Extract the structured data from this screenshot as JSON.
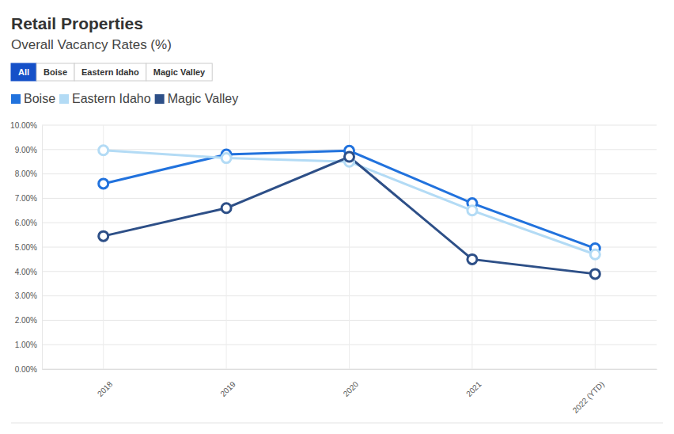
{
  "chart_data": {
    "type": "line",
    "title": "Retail Properties",
    "subtitle": "Overall Vacancy Rates (%)",
    "buttons": [
      "All",
      "Boise",
      "Eastern Idaho",
      "Magic Valley"
    ],
    "categories": [
      "2018",
      "2019",
      "2020",
      "2021",
      "2022 (YTD)"
    ],
    "series": [
      {
        "name": "Boise",
        "color": "#2172dd",
        "values": [
          7.6,
          8.8,
          8.95,
          6.8,
          4.95
        ]
      },
      {
        "name": "Eastern Idaho",
        "color": "#b3dbf5",
        "values": [
          8.97,
          8.65,
          8.5,
          6.5,
          4.7
        ]
      },
      {
        "name": "Magic Valley",
        "color": "#2d4f87",
        "values": [
          5.45,
          6.6,
          8.7,
          4.5,
          3.9
        ]
      }
    ],
    "ylim": [
      0,
      10
    ],
    "yticks": [
      {
        "value": 0,
        "label": "0.00%"
      },
      {
        "value": 1,
        "label": "1.00%"
      },
      {
        "value": 2,
        "label": "2.00%"
      },
      {
        "value": 3,
        "label": "3.00%"
      },
      {
        "value": 4,
        "label": "4.00%"
      },
      {
        "value": 5,
        "label": "5.00%"
      },
      {
        "value": 6,
        "label": "6.00%"
      },
      {
        "value": 7,
        "label": "7.00%"
      },
      {
        "value": 8,
        "label": "8.00%"
      },
      {
        "value": 9,
        "label": "9.00%"
      },
      {
        "value": 10,
        "label": "10.00%"
      }
    ],
    "grid": true,
    "legend": "top",
    "marker": "circle"
  }
}
